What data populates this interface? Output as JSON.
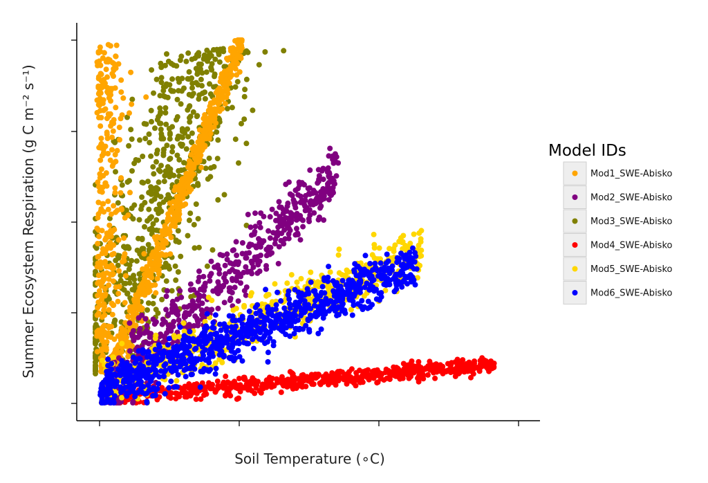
{
  "chart_data": {
    "type": "scatter",
    "title": "",
    "xlabel": "Soil Temperature (∘C)",
    "ylabel": "Summer Ecosystem Respiration (g C m⁻² s⁻¹)",
    "x_ticks": 4,
    "y_ticks": 5,
    "tick_labels_shown": false,
    "grid": false,
    "legend": {
      "title": "Model IDs",
      "placement": "right"
    },
    "series": [
      {
        "name": "Mod1_SWE-Abisko",
        "color": "#FFA500",
        "description": "narrow steep band plus scattered cloud near zero temperature"
      },
      {
        "name": "Mod2_SWE-Abisko",
        "color": "#800080",
        "description": "medium-slope band"
      },
      {
        "name": "Mod3_SWE-Abisko",
        "color": "#808000",
        "description": "broad steep cloud"
      },
      {
        "name": "Mod4_SWE-Abisko",
        "color": "#FF0000",
        "description": "low flat band extending to highest temperatures"
      },
      {
        "name": "Mod5_SWE-Abisko",
        "color": "#FFD700",
        "description": "band bordering Mod6"
      },
      {
        "name": "Mod6_SWE-Abisko",
        "color": "#0000FF",
        "description": "moderate-slope band"
      }
    ]
  }
}
